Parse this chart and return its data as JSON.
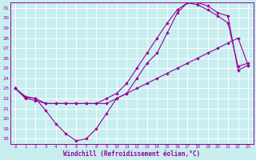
{
  "xlabel": "Windchill (Refroidissement éolien,°C)",
  "background_color": "#c8eef0",
  "grid_color": "#ffffff",
  "line_color": "#990099",
  "xlim": [
    -0.5,
    23.5
  ],
  "ylim": [
    17.5,
    31.5
  ],
  "xticks": [
    0,
    1,
    2,
    3,
    4,
    5,
    6,
    7,
    8,
    9,
    10,
    11,
    12,
    13,
    14,
    15,
    16,
    17,
    18,
    19,
    20,
    21,
    22,
    23
  ],
  "yticks": [
    18,
    19,
    20,
    21,
    22,
    23,
    24,
    25,
    26,
    27,
    28,
    29,
    30,
    31
  ],
  "curve1_x": [
    0,
    1,
    2,
    3,
    4,
    5,
    6,
    7,
    8,
    9,
    10,
    11,
    12,
    13,
    14,
    15,
    16,
    17,
    18,
    19,
    20,
    21,
    22,
    23
  ],
  "curve1_y": [
    23.0,
    22.2,
    22.0,
    20.8,
    19.5,
    18.5,
    17.8,
    18.0,
    19.0,
    20.5,
    22.0,
    22.5,
    24.0,
    25.5,
    26.5,
    28.5,
    30.5,
    31.5,
    31.5,
    31.2,
    30.5,
    30.2,
    24.8,
    25.3
  ],
  "curve2_x": [
    0,
    1,
    2,
    3,
    4,
    5,
    6,
    7,
    8,
    9,
    10,
    11,
    12,
    13,
    14,
    15,
    16,
    17,
    18,
    19,
    20,
    21,
    22,
    23
  ],
  "curve2_y": [
    23.0,
    22.1,
    22.0,
    21.5,
    21.5,
    21.5,
    21.5,
    21.5,
    21.5,
    22.0,
    22.5,
    23.5,
    25.0,
    26.5,
    28.0,
    29.5,
    30.8,
    31.5,
    31.3,
    30.8,
    30.2,
    29.5,
    25.2,
    25.5
  ],
  "curve3_x": [
    0,
    1,
    2,
    3,
    4,
    5,
    6,
    7,
    8,
    9,
    10,
    11,
    12,
    13,
    14,
    15,
    16,
    17,
    18,
    19,
    20,
    21,
    22,
    23
  ],
  "curve3_y": [
    23.0,
    22.0,
    21.8,
    21.5,
    21.5,
    21.5,
    21.5,
    21.5,
    21.5,
    21.5,
    22.0,
    22.5,
    23.0,
    23.5,
    24.0,
    24.5,
    25.0,
    25.5,
    26.0,
    26.5,
    27.0,
    27.5,
    28.0,
    25.3
  ]
}
